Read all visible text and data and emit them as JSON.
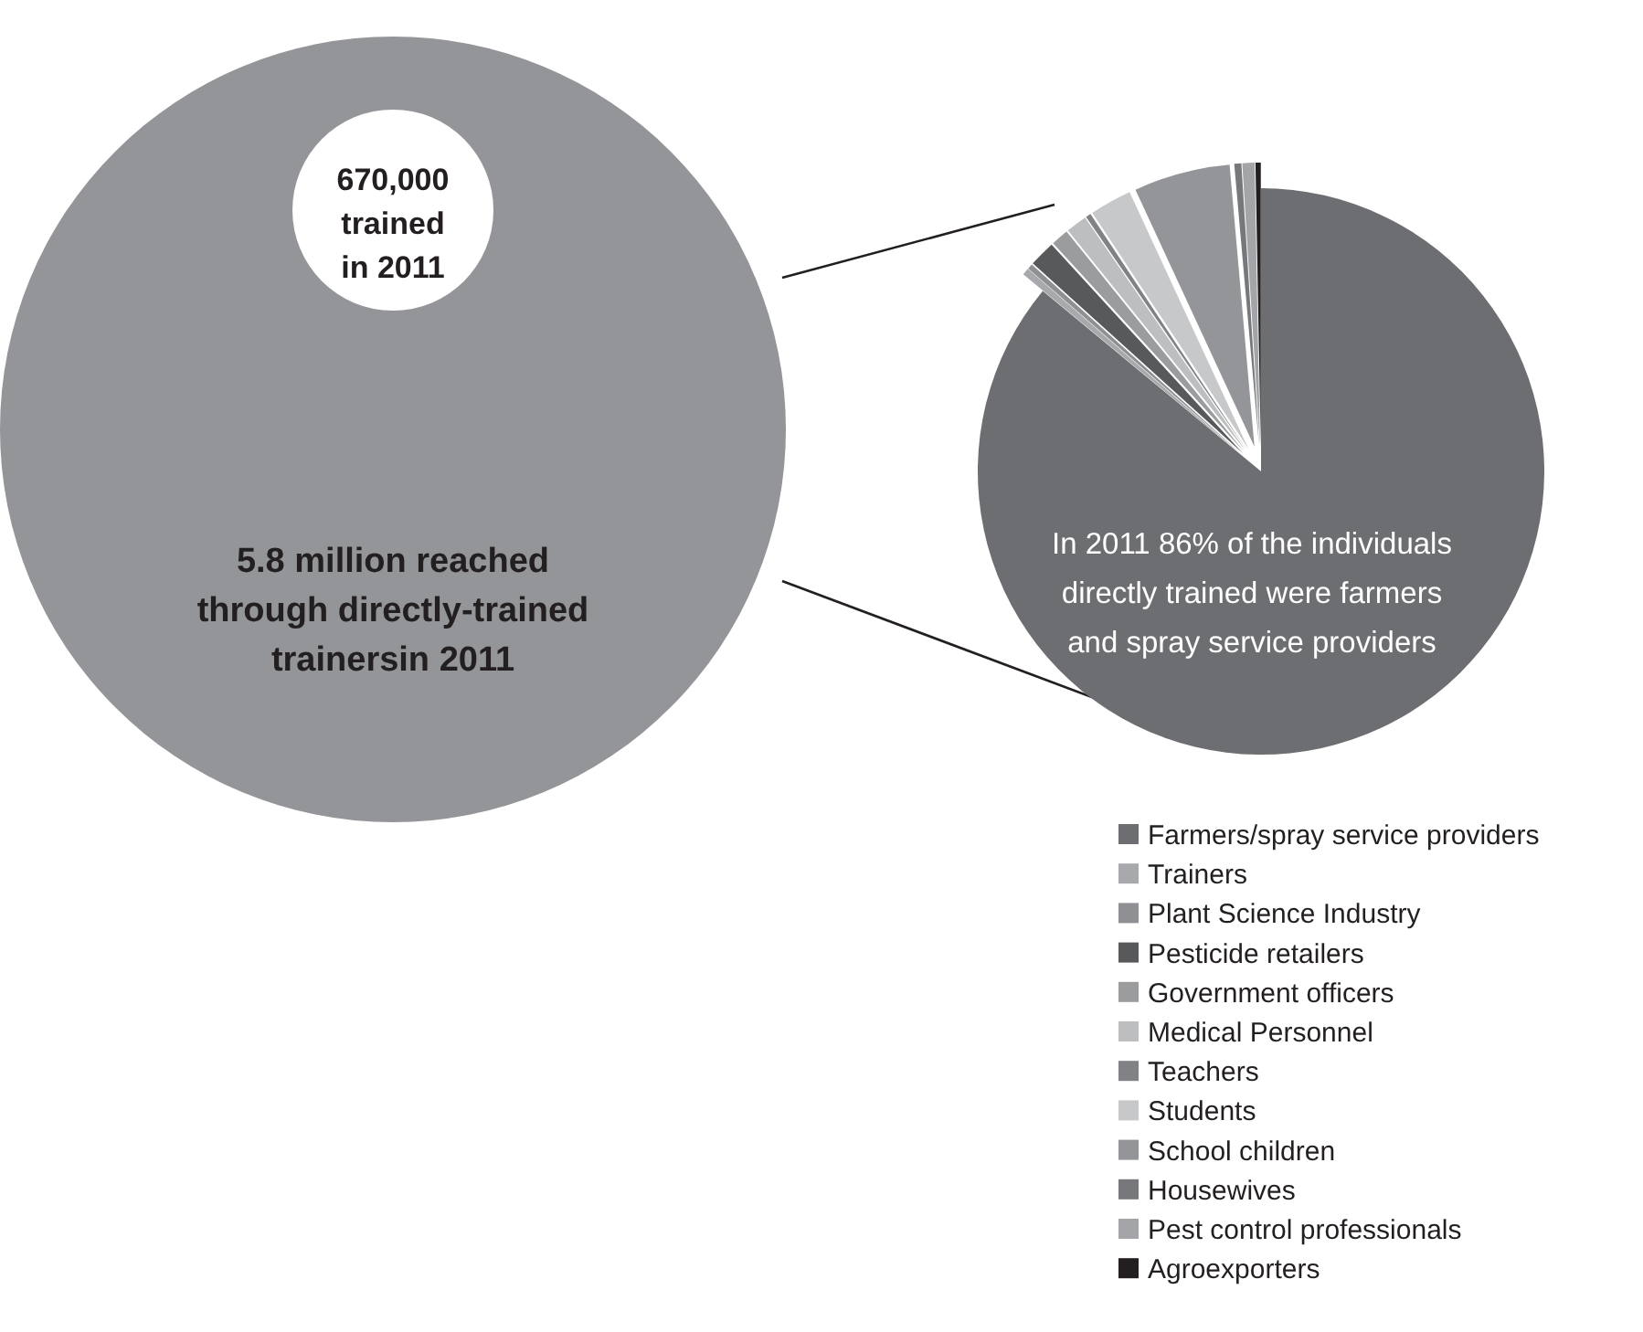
{
  "chart_data": {
    "type": "pie",
    "categories": [
      "Farmers/spray service providers",
      "Trainers",
      "Plant Science Industry",
      "Pesticide retailers",
      "Government officers",
      "Medical Personnel",
      "Teachers",
      "Students",
      "School children",
      "Housewives",
      "Pest control professionals",
      "Agroexporters"
    ],
    "values": [
      86,
      0.4,
      0.3,
      1.5,
      1.0,
      1.2,
      0.3,
      2.4,
      5.5,
      0.4,
      0.7,
      0.3
    ],
    "colors": [
      "#6d6e71",
      "#a7a9ac",
      "#8e9093",
      "#58595b",
      "#9a9c9e",
      "#bcbec0",
      "#808285",
      "#c7c8ca",
      "#939598",
      "#77787b",
      "#a3a5a8",
      "#231f20"
    ],
    "legend": "bottom right",
    "annotations": [
      "670,000\ntrained\nin 2011",
      "5.8 million reached\nthrough directly-trained\ntrainersin 2011",
      "In 2011 86% of the individuals\ndirectly trained were farmers\nand spray service providers"
    ]
  }
}
